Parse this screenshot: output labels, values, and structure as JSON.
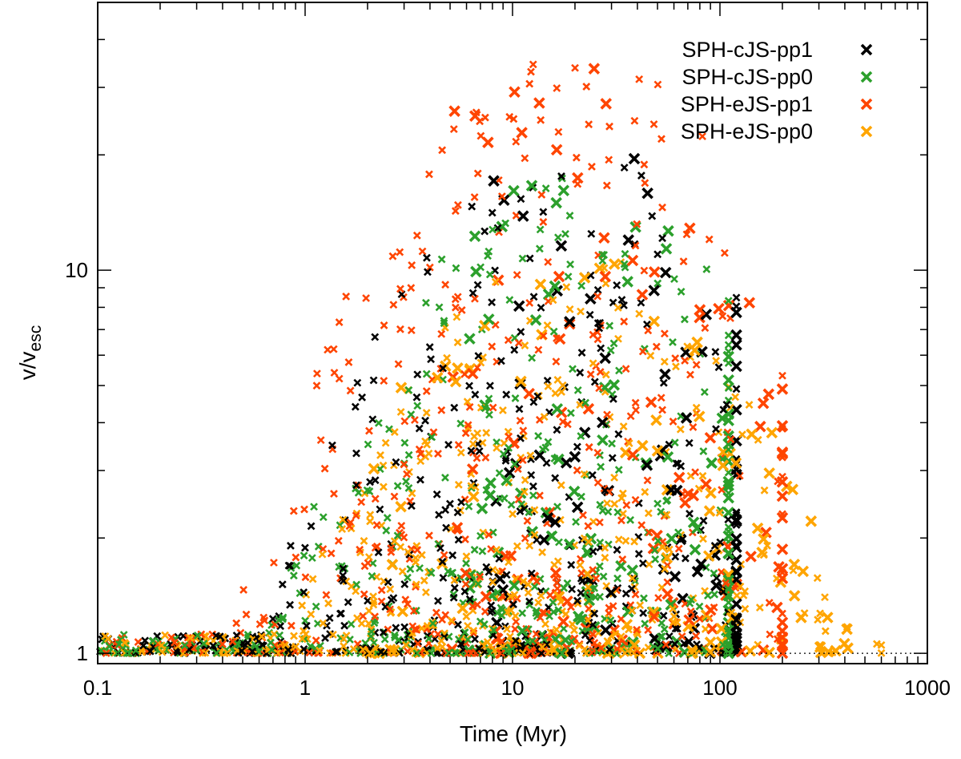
{
  "chart_data": {
    "type": "scatter",
    "title": "",
    "xlabel": "Time (Myr)",
    "ylabel_main": "v/v",
    "ylabel_sub": "esc",
    "xscale": "log",
    "yscale": "log",
    "xlim": [
      0.1,
      1000
    ],
    "ylim": [
      0.94,
      50
    ],
    "x_ticks": [
      {
        "value": 0.1,
        "label": "0.1"
      },
      {
        "value": 1,
        "label": "1"
      },
      {
        "value": 10,
        "label": "10"
      },
      {
        "value": 100,
        "label": "100"
      },
      {
        "value": 1000,
        "label": "1000"
      }
    ],
    "y_ticks": [
      {
        "value": 1,
        "label": "1"
      },
      {
        "value": 10,
        "label": "10"
      }
    ],
    "reference_line": {
      "y": 1,
      "style": "dotted"
    },
    "legend_position": "top-right",
    "series": [
      {
        "name": "SPH-cJS-pp1",
        "color": "#000000",
        "seed": 11,
        "count": 520,
        "small_xmax": 120,
        "big_xmin": 8,
        "big_xmax": 380,
        "peak": 22
      },
      {
        "name": "SPH-cJS-pp0",
        "color": "#2ca02c",
        "seed": 23,
        "count": 520,
        "small_xmax": 110,
        "big_xmin": 6,
        "big_xmax": 300,
        "peak": 18
      },
      {
        "name": "SPH-eJS-pp1",
        "color": "#ff4500",
        "seed": 37,
        "count": 560,
        "small_xmax": 200,
        "big_xmin": 5,
        "big_xmax": 400,
        "peak": 40
      },
      {
        "name": "SPH-eJS-pp0",
        "color": "#ffa500",
        "seed": 51,
        "count": 540,
        "small_xmax": 600,
        "big_xmin": 2,
        "big_xmax": 420,
        "peak": 12
      }
    ]
  }
}
